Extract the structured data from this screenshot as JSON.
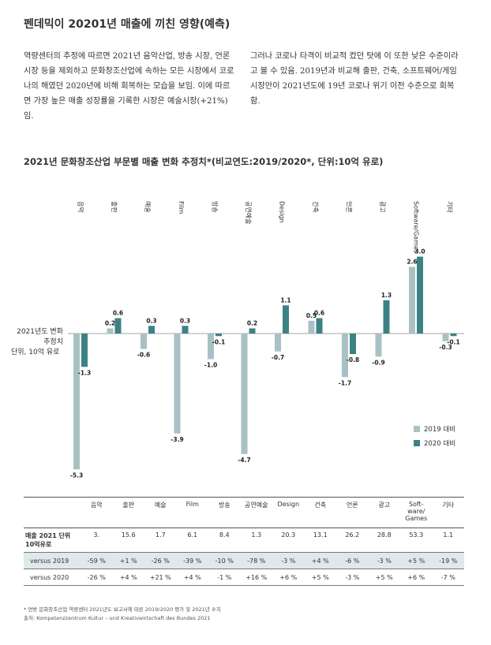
{
  "page": {
    "title": "펜데믹이 20201년 매출에 끼친 영향(예측)",
    "para_left": "역량센터의 추정에 따르면 2021년  음악산업, 방송 시장, 언론시장 등을 제외하고 문화창조산업에 속하는 모든 시장에서 코로나의 해였던 2020년에 비해 회복하는 모습을 보임. 이에 따르면 가장 높은 매출 성장률을 기록한 시장은 예술시장(+21%)임.",
    "para_right": "그러나 코로나 타격이 비교적 컸던 탓에 이 또한 낮은 수준이라고 볼 수 있음. 2019년과 비교해 출판, 건축, 소프트웨어/게임 시장만이 2021년도에 19년 코로나 위기 이전 수준으로 회복함.",
    "footnote1": "* 연방 문화창조산업 역량센터 2021년도 보고서에 따른 2019/2020 평가 및 2021년 수치",
    "footnote2": "출처: Kompetenzzentrum Kultur – und Kreativwirtschaft des Bundes 2021"
  },
  "chart_data": {
    "type": "bar",
    "title": "2021년 문화창조산업 부문별 매출 변화 추정치*(비교연도:2019/2020*, 단위:10억 유로)",
    "ylabel_line1": "2021년도 변화",
    "ylabel_line2": "추정치",
    "ylabel_line3": "단위, 10억 유로",
    "categories": [
      "음악",
      "출판",
      "예술",
      "Film",
      "방송",
      "공연예술",
      "Design",
      "건축",
      "언론",
      "광고",
      "Software/Games",
      "기타"
    ],
    "series": [
      {
        "name": "2019 대비",
        "color": "#a9c1c4",
        "values": [
          -5.3,
          0.2,
          -0.6,
          -3.9,
          -1.0,
          -4.7,
          -0.7,
          0.5,
          -1.7,
          -0.9,
          2.6,
          -0.3
        ]
      },
      {
        "name": "2020 대비",
        "color": "#3c8285",
        "values": [
          -1.3,
          0.6,
          0.3,
          0.3,
          -0.1,
          0.2,
          1.1,
          0.6,
          -0.8,
          1.3,
          3.0,
          -0.1
        ]
      }
    ],
    "labels_2019": [
      "-5.3",
      "0.2",
      "-0.6",
      "-3.9",
      "-1.0",
      "-4.7",
      "-0.7",
      "0.5",
      "-1.7",
      "-0.9",
      "2.6",
      "-0.3"
    ],
    "labels_2020": [
      "-1.3",
      "0.6",
      "0.3",
      "0.3",
      "-0.1",
      "0.2",
      "1.1",
      "0.6",
      "-0.8",
      "1.3",
      "3.0",
      "-0.1"
    ],
    "ylim": [
      -5.5,
      3.5
    ]
  },
  "table": {
    "headers": [
      "음악",
      "출판",
      "예술",
      "Film",
      "방송",
      "공연예술",
      "Design",
      "건축",
      "언론",
      "광고",
      "Soft-ware/ Games",
      "기타"
    ],
    "rows": [
      {
        "label": "매출 2021 단위 10억유로",
        "cells": [
          "3.",
          "15.6",
          "1.7",
          "6.1",
          "8.4",
          "1.3",
          "20.3",
          "13.1",
          "26.2",
          "28.8",
          "53.3",
          "1.1"
        ]
      },
      {
        "label": "versus 2019",
        "cells": [
          "-59 %",
          "+1 %",
          "-26 %",
          "-39 %",
          "-10 %",
          "-78 %",
          "-3 %",
          "+4 %",
          "-6 %",
          "-3 %",
          "+5 %",
          "-19 %"
        ]
      },
      {
        "label": "versus 2020",
        "cells": [
          "-26 %",
          "+4 %",
          "+21 %",
          "+4 %",
          "-1 %",
          "+16 %",
          "+6 %",
          "+5 %",
          "-3 %",
          "+5 %",
          "+6 %",
          "-7 %"
        ]
      }
    ]
  }
}
